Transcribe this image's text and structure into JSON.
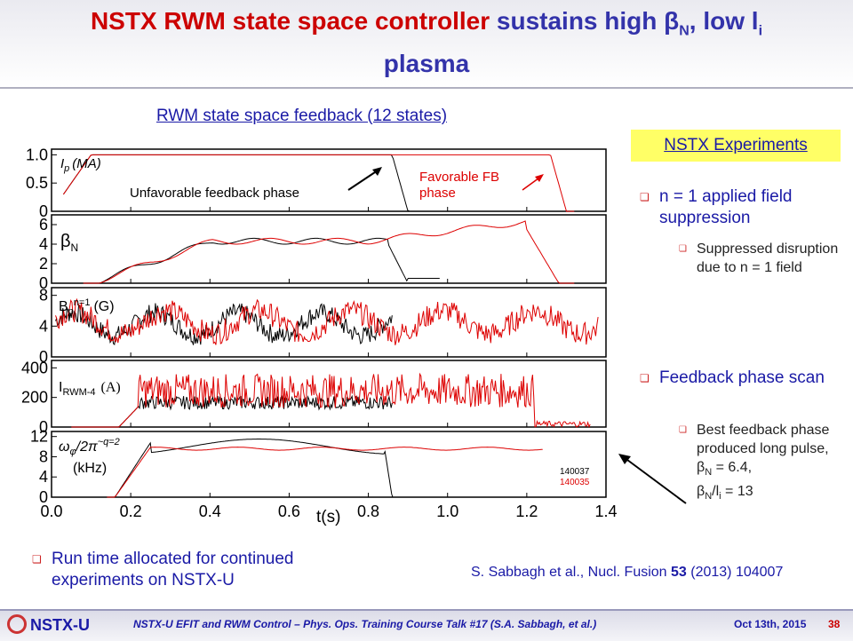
{
  "slide": {
    "title_part1": "NSTX RWM state space controller",
    "title_part2": "sustains high β",
    "title_sub_n": "N",
    "title_part3": ", low l",
    "title_sub_i": "i",
    "title_part4": "plasma"
  },
  "figure": {
    "heading": "RWM state space feedback (12 states)",
    "badge": "NSTX Experiments",
    "panel_labels": {
      "ip": "I",
      "ip_sub": "p",
      "ip_unit": "(MA)",
      "beta": "β",
      "beta_sub": "N",
      "bp": "B",
      "bp_sub": "p",
      "bp_sup": "n=1",
      "bp_unit": "(G)",
      "irwm": "I",
      "irwm_sub": "RWM-4",
      "irwm_unit": "(A)",
      "omega": "ω",
      "omega_sub": "φ",
      "omega_rest": "/2π",
      "omega_sup": "~q=2",
      "omega_unit": "(kHz)"
    },
    "annotations": {
      "unfavorable": "Unfavorable feedback phase",
      "favorable_line1": "Favorable FB",
      "favorable_line2": "phase"
    },
    "shots": [
      "140037",
      "140035"
    ],
    "xlabel": "t(s)",
    "xticks": [
      "0.0",
      "0.2",
      "0.4",
      "0.6",
      "0.8",
      "1.0",
      "1.2",
      "1.4"
    ],
    "yticks": {
      "ip": [
        "1.0",
        "0.5",
        "0"
      ],
      "beta": [
        "6",
        "4",
        "2",
        "0"
      ],
      "bp": [
        "8",
        "4",
        "0"
      ],
      "irwm": [
        "400",
        "200",
        "0"
      ],
      "omega": [
        "12",
        "8",
        "4",
        "0"
      ]
    },
    "colors": {
      "shot_140037": "#000000",
      "shot_140035": "#dd0000"
    }
  },
  "bullets": {
    "b1": "n = 1 applied field suppression",
    "b1_sub": "Suppressed disruption due to n = 1 field",
    "b2": "Feedback phase scan",
    "b2_sub_1": "Best feedback phase produced long pulse, ",
    "b2_sub_beta1": "β",
    "b2_sub_n1": "N",
    "b2_sub_2": " = 6.4,",
    "b2_sub_beta2": "β",
    "b2_sub_n2": "N",
    "b2_sub_3": "/l",
    "b2_sub_i": "i",
    "b2_sub_4": " = 13",
    "b3": "Run time allocated for continued experiments on NSTX-U"
  },
  "citation": {
    "part1": "S. Sabbagh et al., Nucl. Fusion ",
    "vol": "53",
    "part2": " (2013) 104007"
  },
  "footer": {
    "logo": "NSTX-U",
    "text": "NSTX-U EFIT and RWM Control – Phys. Ops. Training Course Talk #17 (S.A. Sabbagh, et al.)",
    "date": "Oct 13th, 2015",
    "page": "38"
  }
}
